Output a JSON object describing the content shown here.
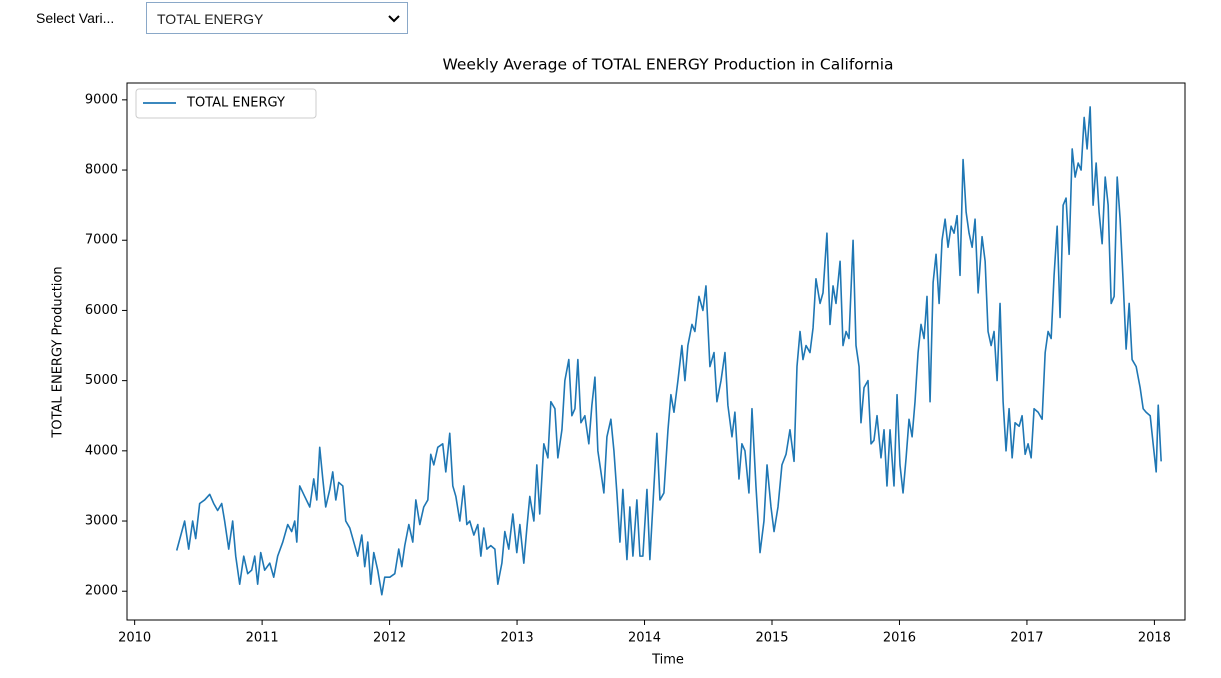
{
  "dropdown": {
    "label": "Select Vari...",
    "selected": "TOTAL ENERGY"
  },
  "chart_data": {
    "type": "line",
    "title": "Weekly Average of TOTAL ENERGY Production in California",
    "x_label": "Time",
    "y_label": "TOTAL ENERGY Production",
    "legend": "upper left",
    "grid": false,
    "xlim": [
      2009.94,
      2018.24
    ],
    "ylim": [
      1590,
      9240
    ],
    "xticks": [
      2010,
      2011,
      2012,
      2013,
      2014,
      2015,
      2016,
      2017,
      2018
    ],
    "yticks": [
      2000,
      3000,
      4000,
      5000,
      6000,
      7000,
      8000,
      9000
    ],
    "x": [
      2010.33,
      2010.392,
      2010.424,
      2010.455,
      2010.479,
      2010.51,
      2010.549,
      2010.589,
      2010.62,
      2010.651,
      2010.683,
      2010.706,
      2010.738,
      2010.769,
      2010.793,
      2010.824,
      2010.856,
      2010.887,
      2010.918,
      2010.942,
      2010.965,
      2010.989,
      2011.02,
      2011.06,
      2011.091,
      2011.122,
      2011.162,
      2011.201,
      2011.232,
      2011.256,
      2011.272,
      2011.295,
      2011.334,
      2011.374,
      2011.405,
      2011.429,
      2011.452,
      2011.476,
      2011.499,
      2011.531,
      2011.554,
      2011.578,
      2011.601,
      2011.633,
      2011.656,
      2011.688,
      2011.719,
      2011.75,
      2011.782,
      2011.805,
      2011.829,
      2011.852,
      2011.876,
      2011.907,
      2011.939,
      2011.962,
      2012.002,
      2012.041,
      2012.072,
      2012.096,
      2012.119,
      2012.151,
      2012.182,
      2012.206,
      2012.237,
      2012.268,
      2012.3,
      2012.323,
      2012.347,
      2012.378,
      2012.417,
      2012.441,
      2012.472,
      2012.496,
      2012.52,
      2012.551,
      2012.582,
      2012.606,
      2012.629,
      2012.661,
      2012.692,
      2012.716,
      2012.739,
      2012.763,
      2012.794,
      2012.826,
      2012.849,
      2012.881,
      2012.904,
      2012.935,
      2012.967,
      2012.998,
      2013.022,
      2013.053,
      2013.077,
      2013.1,
      2013.132,
      2013.155,
      2013.178,
      2013.21,
      2013.242,
      2013.265,
      2013.297,
      2013.32,
      2013.352,
      2013.375,
      2013.406,
      2013.43,
      2013.454,
      2013.477,
      2013.501,
      2013.532,
      2013.563,
      2013.587,
      2013.611,
      2013.634,
      2013.658,
      2013.681,
      2013.705,
      2013.736,
      2013.76,
      2013.783,
      2013.807,
      2013.83,
      2013.862,
      2013.885,
      2013.909,
      2013.94,
      2013.964,
      2013.987,
      2014.019,
      2014.042,
      2014.074,
      2014.097,
      2014.121,
      2014.152,
      2014.184,
      2014.207,
      2014.231,
      2014.262,
      2014.293,
      2014.317,
      2014.34,
      2014.372,
      2014.395,
      2014.427,
      2014.458,
      2014.482,
      2014.513,
      2014.545,
      2014.568,
      2014.6,
      2014.631,
      2014.654,
      2014.686,
      2014.709,
      2014.741,
      2014.764,
      2014.788,
      2014.819,
      2014.843,
      2014.874,
      2014.906,
      2014.937,
      2014.961,
      2014.992,
      2015.016,
      2015.047,
      2015.078,
      2015.11,
      2015.141,
      2015.173,
      2015.196,
      2015.22,
      2015.243,
      2015.267,
      2015.298,
      2015.322,
      2015.345,
      2015.377,
      2015.4,
      2015.431,
      2015.455,
      2015.479,
      2015.502,
      2015.534,
      2015.557,
      2015.581,
      2015.604,
      2015.636,
      2015.659,
      2015.683,
      2015.698,
      2015.722,
      2015.753,
      2015.777,
      2015.8,
      2015.824,
      2015.855,
      2015.879,
      2015.902,
      2015.926,
      2015.957,
      2015.981,
      2016.004,
      2016.028,
      2016.052,
      2016.075,
      2016.099,
      2016.122,
      2016.146,
      2016.169,
      2016.193,
      2016.216,
      2016.24,
      2016.264,
      2016.287,
      2016.311,
      2016.334,
      2016.358,
      2016.381,
      2016.405,
      2016.428,
      2016.452,
      2016.475,
      2016.499,
      2016.523,
      2016.546,
      2016.57,
      2016.593,
      2016.617,
      2016.648,
      2016.672,
      2016.695,
      2016.719,
      2016.742,
      2016.766,
      2016.789,
      2016.813,
      2016.836,
      2016.86,
      2016.884,
      2016.907,
      2016.939,
      2016.962,
      2016.986,
      2017.009,
      2017.033,
      2017.056,
      2017.088,
      2017.119,
      2017.143,
      2017.166,
      2017.19,
      2017.213,
      2017.237,
      2017.26,
      2017.284,
      2017.307,
      2017.331,
      2017.355,
      2017.378,
      2017.402,
      2017.425,
      2017.449,
      2017.472,
      2017.496,
      2017.519,
      2017.543,
      2017.566,
      2017.59,
      2017.614,
      2017.637,
      2017.661,
      2017.684,
      2017.708,
      2017.731,
      2017.755,
      2017.778,
      2017.802,
      2017.825,
      2017.857,
      2017.888,
      2017.912,
      2017.935,
      2017.967,
      2017.99,
      2018.014,
      2018.03,
      2018.053
    ],
    "series": [
      {
        "name": "TOTAL ENERGY",
        "color": "#1f77b4",
        "values": [
          2580,
          3000,
          2600,
          3000,
          2750,
          3250,
          3300,
          3380,
          3250,
          3150,
          3250,
          3000,
          2600,
          3000,
          2500,
          2100,
          2500,
          2250,
          2300,
          2500,
          2100,
          2550,
          2300,
          2400,
          2200,
          2500,
          2700,
          2950,
          2850,
          3000,
          2700,
          3500,
          3350,
          3200,
          3600,
          3300,
          4050,
          3600,
          3200,
          3450,
          3700,
          3300,
          3550,
          3500,
          3000,
          2900,
          2700,
          2500,
          2800,
          2350,
          2700,
          2100,
          2550,
          2300,
          1950,
          2200,
          2200,
          2250,
          2600,
          2350,
          2650,
          2950,
          2700,
          3300,
          2950,
          3200,
          3300,
          3950,
          3800,
          4050,
          4100,
          3700,
          4250,
          3500,
          3350,
          3000,
          3500,
          2950,
          3000,
          2800,
          2950,
          2500,
          2900,
          2600,
          2650,
          2600,
          2100,
          2400,
          2850,
          2600,
          3100,
          2550,
          2950,
          2400,
          2900,
          3350,
          3000,
          3800,
          3100,
          4100,
          3900,
          4700,
          4600,
          3900,
          4300,
          5000,
          5300,
          4500,
          4600,
          5300,
          4400,
          4500,
          4100,
          4650,
          5050,
          4000,
          3700,
          3400,
          4200,
          4450,
          4000,
          3400,
          2700,
          3450,
          2450,
          3200,
          2500,
          3300,
          2500,
          2500,
          3450,
          2450,
          3500,
          4250,
          3300,
          3400,
          4300,
          4800,
          4550,
          5000,
          5500,
          5000,
          5500,
          5800,
          5700,
          6200,
          6000,
          6350,
          5200,
          5400,
          4700,
          5000,
          5400,
          4650,
          4200,
          4550,
          3600,
          4100,
          4000,
          3400,
          4600,
          3500,
          2550,
          3000,
          3800,
          3200,
          2850,
          3200,
          3800,
          3950,
          4300,
          3850,
          5200,
          5700,
          5300,
          5500,
          5400,
          5750,
          6450,
          6100,
          6250,
          7100,
          5800,
          6350,
          6100,
          6700,
          5500,
          5700,
          5600,
          7000,
          5500,
          5200,
          4400,
          4900,
          5000,
          4100,
          4150,
          4500,
          3900,
          4300,
          3500,
          4300,
          3500,
          4800,
          3800,
          3400,
          3900,
          4450,
          4200,
          4700,
          5400,
          5800,
          5600,
          6200,
          4700,
          6400,
          6800,
          6100,
          7000,
          7300,
          6900,
          7200,
          7100,
          7350,
          6500,
          8150,
          7400,
          7100,
          6900,
          7300,
          6250,
          7050,
          6700,
          5700,
          5500,
          5700,
          5000,
          6100,
          4700,
          4000,
          4600,
          3900,
          4400,
          4350,
          4500,
          3950,
          4100,
          3900,
          4600,
          4550,
          4450,
          5400,
          5700,
          5600,
          6500,
          7200,
          5900,
          7500,
          7600,
          6800,
          8300,
          7900,
          8100,
          8000,
          8750,
          8300,
          8900,
          7500,
          8100,
          7400,
          6950,
          7900,
          7500,
          6100,
          6200,
          7900,
          7300,
          6400,
          5450,
          6100,
          5300,
          5200,
          4900,
          4600,
          4550,
          4500,
          4100,
          3700,
          4650,
          3850
        ]
      }
    ]
  }
}
